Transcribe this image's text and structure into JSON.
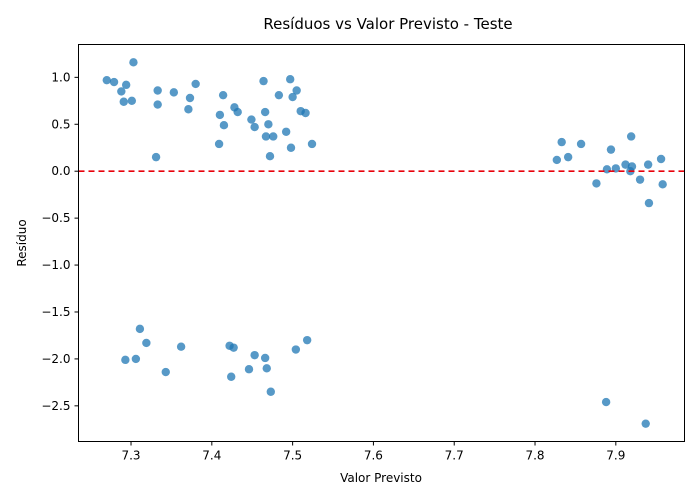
{
  "chart_data": {
    "type": "scatter",
    "title": "Resíduos vs Valor Previsto - Teste",
    "xlabel": "Valor Previsto",
    "ylabel": "Resíduo",
    "xlim": [
      7.235,
      7.985
    ],
    "ylim": [
      -2.88,
      1.35
    ],
    "xticks": [
      7.3,
      7.4,
      7.5,
      7.6,
      7.7,
      7.8,
      7.9
    ],
    "yticks": [
      -2.5,
      -2.0,
      -1.5,
      -1.0,
      -0.5,
      0.0,
      0.5,
      1.0
    ],
    "ytick_labels": [
      "−2.5",
      "−2.0",
      "−1.5",
      "−1.0",
      "−0.5",
      "0.0",
      "0.5",
      "1.0"
    ],
    "grid": false,
    "reference_line": {
      "y": 0.0,
      "color": "#e8000b",
      "style": "dashed"
    },
    "point_color": "#1f77b4",
    "points": [
      [
        7.27,
        0.97
      ],
      [
        7.279,
        0.95
      ],
      [
        7.288,
        0.85
      ],
      [
        7.294,
        0.92
      ],
      [
        7.291,
        0.74
      ],
      [
        7.301,
        0.75
      ],
      [
        7.303,
        1.16
      ],
      [
        7.333,
        0.86
      ],
      [
        7.333,
        0.71
      ],
      [
        7.353,
        0.84
      ],
      [
        7.371,
        0.66
      ],
      [
        7.373,
        0.78
      ],
      [
        7.38,
        0.93
      ],
      [
        7.331,
        0.15
      ],
      [
        7.409,
        0.29
      ],
      [
        7.41,
        0.6
      ],
      [
        7.414,
        0.81
      ],
      [
        7.415,
        0.49
      ],
      [
        7.428,
        0.68
      ],
      [
        7.432,
        0.63
      ],
      [
        7.449,
        0.55
      ],
      [
        7.453,
        0.47
      ],
      [
        7.464,
        0.96
      ],
      [
        7.466,
        0.63
      ],
      [
        7.467,
        0.37
      ],
      [
        7.47,
        0.5
      ],
      [
        7.472,
        0.16
      ],
      [
        7.476,
        0.37
      ],
      [
        7.483,
        0.81
      ],
      [
        7.492,
        0.42
      ],
      [
        7.497,
        0.98
      ],
      [
        7.498,
        0.25
      ],
      [
        7.5,
        0.79
      ],
      [
        7.505,
        0.86
      ],
      [
        7.51,
        0.64
      ],
      [
        7.516,
        0.62
      ],
      [
        7.524,
        0.29
      ],
      [
        7.827,
        0.12
      ],
      [
        7.833,
        0.31
      ],
      [
        7.841,
        0.15
      ],
      [
        7.857,
        0.29
      ],
      [
        7.876,
        -0.13
      ],
      [
        7.889,
        0.02
      ],
      [
        7.894,
        0.23
      ],
      [
        7.9,
        0.03
      ],
      [
        7.912,
        0.07
      ],
      [
        7.918,
        0.0
      ],
      [
        7.919,
        0.37
      ],
      [
        7.92,
        0.05
      ],
      [
        7.93,
        -0.09
      ],
      [
        7.94,
        0.07
      ],
      [
        7.941,
        -0.34
      ],
      [
        7.956,
        0.13
      ],
      [
        7.958,
        -0.14
      ],
      [
        7.293,
        -2.01
      ],
      [
        7.306,
        -2.0
      ],
      [
        7.311,
        -1.68
      ],
      [
        7.319,
        -1.83
      ],
      [
        7.343,
        -2.14
      ],
      [
        7.362,
        -1.87
      ],
      [
        7.422,
        -1.86
      ],
      [
        7.424,
        -2.19
      ],
      [
        7.427,
        -1.88
      ],
      [
        7.446,
        -2.11
      ],
      [
        7.453,
        -1.96
      ],
      [
        7.466,
        -1.99
      ],
      [
        7.468,
        -2.1
      ],
      [
        7.473,
        -2.35
      ],
      [
        7.504,
        -1.9
      ],
      [
        7.518,
        -1.8
      ],
      [
        7.888,
        -2.46
      ],
      [
        7.937,
        -2.69
      ]
    ]
  }
}
